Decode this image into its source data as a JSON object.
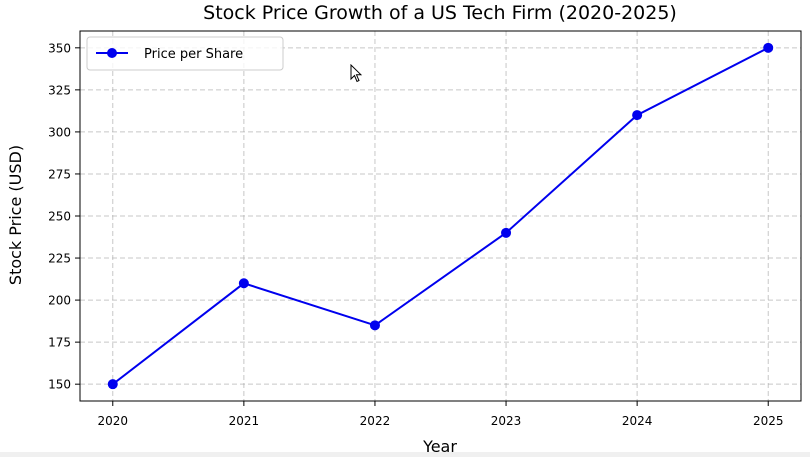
{
  "chart_data": {
    "type": "line",
    "title": "Stock Price Growth of a US Tech Firm (2020-2025)",
    "xlabel": "Year",
    "ylabel": "Stock Price (USD)",
    "x": [
      2020,
      2021,
      2022,
      2023,
      2024,
      2025
    ],
    "x_tick_labels": [
      "2020",
      "2021",
      "2022",
      "2023",
      "2024",
      "2025"
    ],
    "y_ticks": [
      150,
      175,
      200,
      225,
      250,
      275,
      300,
      325,
      350
    ],
    "y_tick_labels": [
      "150",
      "175",
      "200",
      "225",
      "250",
      "275",
      "300",
      "325",
      "350"
    ],
    "ylim": [
      140,
      360
    ],
    "xlim": [
      2019.75,
      2025.25
    ],
    "grid": true,
    "legend_position": "top-left",
    "series": [
      {
        "name": "Price per Share",
        "values": [
          150,
          210,
          185,
          240,
          310,
          350
        ],
        "color": "#0000ee",
        "marker": "circle"
      }
    ]
  }
}
